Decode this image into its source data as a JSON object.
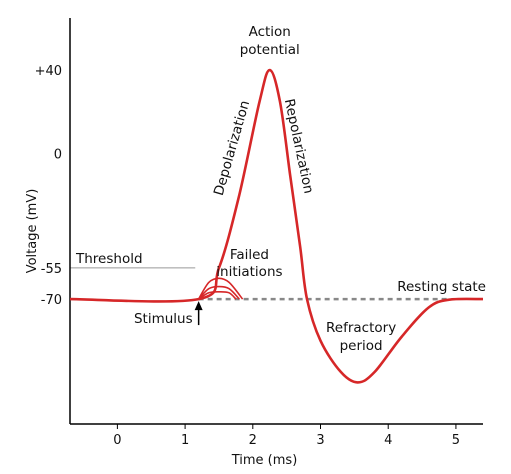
{
  "chart_data": {
    "type": "line",
    "xlabel": "Time (ms)",
    "ylabel": "Voltage (mV)",
    "xlim": [
      -0.7,
      5.4
    ],
    "ylim": [
      -130,
      65
    ],
    "x_ticks": [
      0,
      1,
      2,
      3,
      4,
      5
    ],
    "y_ticks": [
      {
        "value": 40,
        "label": "+40"
      },
      {
        "value": 0,
        "label": "0"
      },
      {
        "value": -55,
        "label": "-55"
      },
      {
        "value": -70,
        "label": "-70"
      }
    ],
    "threshold": {
      "value": -55,
      "x_start": -0.7,
      "x_end": 1.15
    },
    "resting": {
      "value": -70
    },
    "series": [
      {
        "color": "#d62728",
        "points": [
          [
            -0.7,
            -70
          ],
          [
            1.2,
            -70
          ],
          [
            1.5,
            -55
          ],
          [
            1.8,
            -20
          ],
          [
            2.1,
            25
          ],
          [
            2.25,
            40
          ],
          [
            2.4,
            25
          ],
          [
            2.55,
            -10
          ],
          [
            2.7,
            -45
          ],
          [
            2.8,
            -70
          ],
          [
            3.0,
            -90
          ],
          [
            3.3,
            -105
          ],
          [
            3.55,
            -110
          ],
          [
            3.8,
            -105
          ],
          [
            4.2,
            -88
          ],
          [
            4.6,
            -74
          ],
          [
            4.9,
            -70.3
          ],
          [
            5.4,
            -70
          ]
        ]
      }
    ],
    "failed_initiations": [
      {
        "points": [
          [
            1.2,
            -70
          ],
          [
            1.35,
            -62
          ],
          [
            1.5,
            -60
          ],
          [
            1.65,
            -62
          ],
          [
            1.85,
            -70
          ]
        ]
      },
      {
        "points": [
          [
            1.2,
            -70
          ],
          [
            1.35,
            -65
          ],
          [
            1.5,
            -64
          ],
          [
            1.65,
            -65
          ],
          [
            1.8,
            -70
          ]
        ]
      },
      {
        "points": [
          [
            1.2,
            -70
          ],
          [
            1.35,
            -67
          ],
          [
            1.5,
            -66.5
          ],
          [
            1.65,
            -67
          ],
          [
            1.75,
            -70
          ]
        ]
      }
    ],
    "dashed_resting": {
      "x_start": 1.2,
      "x_end": 4.9,
      "color": "#888888"
    },
    "annotations": {
      "action_potential": [
        "Action",
        "potential"
      ],
      "depolarization": "Depolarization",
      "repolarization": "Repolarization",
      "threshold": "Threshold",
      "failed_initiations": [
        "Failed",
        "initiations"
      ],
      "resting_state": "Resting state",
      "stimulus": "Stimulus",
      "refractory_period": [
        "Refractory",
        "period"
      ]
    }
  }
}
